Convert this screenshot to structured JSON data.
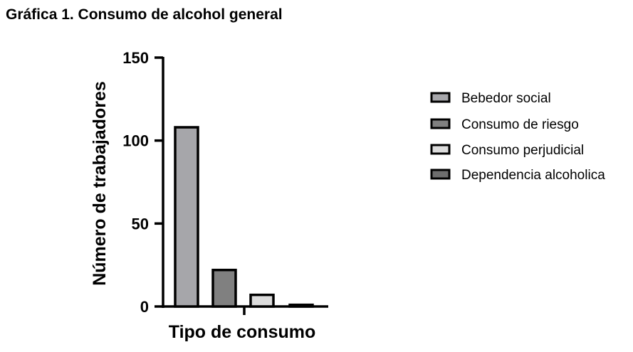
{
  "chart_data": {
    "type": "bar",
    "title": "Gráfica 1. Consumo de alcohol general",
    "xlabel": "Tipo de consumo",
    "ylabel": "Número de trabajadores",
    "ylim": [
      0,
      150
    ],
    "yticks": [
      0,
      50,
      100,
      150
    ],
    "grid": false,
    "legend_position": "right",
    "series": [
      {
        "name": "Bebedor social",
        "value": 108,
        "color": "#a6a6aa"
      },
      {
        "name": "Consumo de riesgo",
        "value": 22,
        "color": "#808080"
      },
      {
        "name": "Consumo perjudicial",
        "value": 7,
        "color": "#dcdcdc"
      },
      {
        "name": "Dependencia alcoholica",
        "value": 1,
        "color": "#6e6e6e"
      }
    ]
  }
}
